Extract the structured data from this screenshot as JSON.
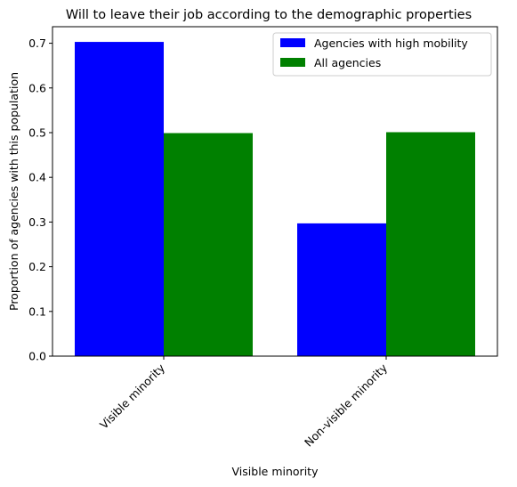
{
  "chart_data": {
    "type": "bar",
    "title": "Will to leave their job according to the demographic properties",
    "xlabel": "Visible minority",
    "ylabel": "Proportion of agencies with this population",
    "categories": [
      "Visible minority",
      "Non-visible minority"
    ],
    "series": [
      {
        "name": "Agencies with high mobility",
        "values": [
          0.703,
          0.297
        ],
        "color": "#0000ff"
      },
      {
        "name": "All agencies",
        "values": [
          0.499,
          0.501
        ],
        "color": "#008000"
      }
    ],
    "ylim": [
      0,
      0.737
    ],
    "yticks": [
      "0.0",
      "0.1",
      "0.2",
      "0.3",
      "0.4",
      "0.5",
      "0.6",
      "0.7"
    ],
    "grid": false,
    "legend_position": "top-right"
  }
}
